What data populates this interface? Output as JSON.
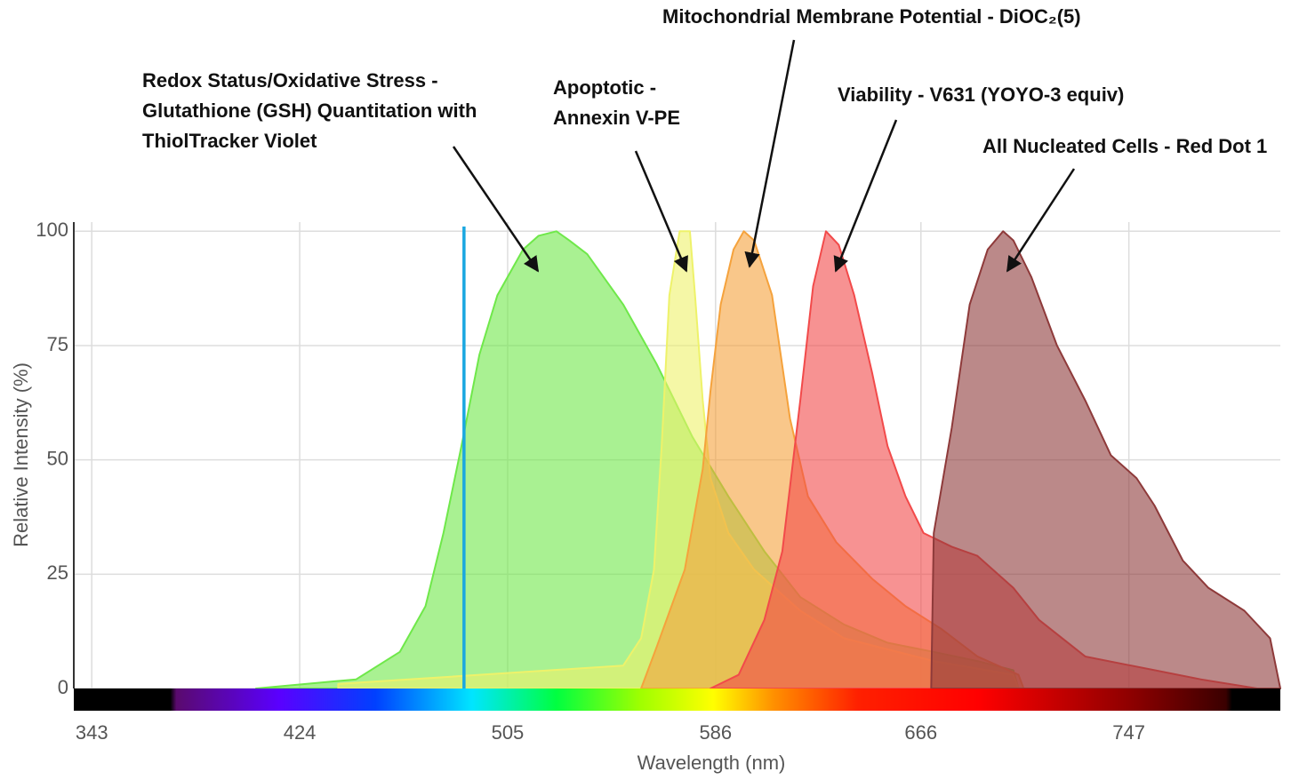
{
  "chart_data": {
    "type": "area",
    "x_label": "Wavelength (nm)",
    "y_label": "Relative Intensity (%)",
    "xlim": [
      336,
      806
    ],
    "xticks": [
      343,
      424,
      505,
      586,
      666,
      747
    ],
    "ylim": [
      0,
      102
    ],
    "yticks": [
      0,
      25,
      50,
      75,
      100
    ],
    "grid": true,
    "laser_line": 488,
    "laser_color": "#1aa7e0",
    "series": [
      {
        "name": "Redox Status/Oxidative Stress - Glutathione (GSH) Quantitation with ThiolTracker Violet",
        "color": "#6fe84a",
        "x": [
          407,
          446,
          463,
          473,
          480,
          487,
          494,
          501,
          511,
          517,
          524,
          529,
          536,
          550,
          563,
          577,
          591,
          605,
          619,
          636,
          653,
          671,
          688,
          702,
          704
        ],
        "values": [
          0,
          2,
          8,
          18,
          34,
          53,
          73,
          86,
          96,
          99,
          100,
          98,
          95,
          84,
          71,
          55,
          42,
          30,
          20,
          14,
          10,
          8,
          6,
          4,
          0
        ]
      },
      {
        "name": "Apoptotic - Annexin V-PE",
        "color": "#eef26a",
        "x": [
          439,
          550,
          557,
          562,
          565,
          568,
          572,
          576,
          578,
          581,
          584,
          591,
          601,
          619,
          636,
          671,
          702,
          704
        ],
        "values": [
          1,
          5,
          11,
          26,
          53,
          86,
          100,
          100,
          86,
          63,
          46,
          34,
          26,
          17,
          11,
          6,
          3,
          0
        ]
      },
      {
        "name": "Mitochondrial Membrane Potential - DiOC₂(5)",
        "color": "#f5a23c",
        "x": [
          557,
          563,
          574,
          581,
          584,
          588,
          593,
          597,
          601,
          608,
          615,
          622,
          633,
          647,
          660,
          674,
          688,
          704,
          706
        ],
        "values": [
          0,
          9,
          26,
          48,
          65,
          84,
          96,
          100,
          98,
          86,
          59,
          42,
          32,
          24,
          18,
          13,
          7,
          3,
          0
        ]
      },
      {
        "name": "Viability - V631 (YOYO-3 equiv)",
        "color": "#f24a4a",
        "x": [
          584,
          595,
          605,
          612,
          619,
          624,
          629,
          634,
          640,
          647,
          653,
          660,
          667,
          678,
          688,
          702,
          712,
          730,
          757,
          775,
          797
        ],
        "values": [
          0,
          3,
          15,
          30,
          63,
          88,
          100,
          97,
          86,
          69,
          53,
          42,
          34,
          31,
          29,
          22,
          15,
          7,
          4,
          2,
          0
        ]
      },
      {
        "name": "All Nucleated Cells - Red Dot 1",
        "color": "#8e3a3a",
        "x": [
          670,
          671,
          678,
          685,
          692,
          698,
          702,
          709,
          719,
          730,
          740,
          750,
          757,
          768,
          778,
          792,
          802,
          806
        ],
        "values": [
          0,
          34,
          57,
          84,
          96,
          100,
          98,
          90,
          75,
          63,
          51,
          46,
          40,
          28,
          22,
          17,
          11,
          0
        ]
      }
    ]
  }
}
